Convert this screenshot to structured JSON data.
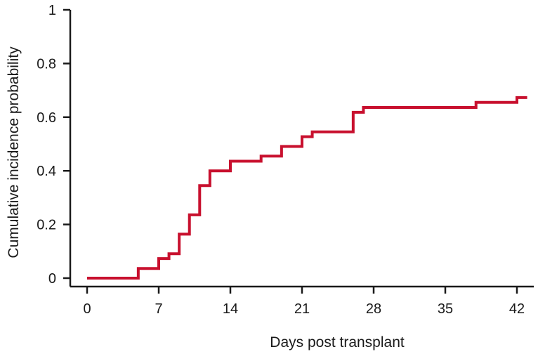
{
  "chart_data": {
    "type": "line",
    "step": true,
    "xlabel": "Days post transplant",
    "ylabel": "Cumulative incidence probability",
    "xlim": [
      0,
      43.5
    ],
    "ylim": [
      0,
      1
    ],
    "x_ticks": [
      0,
      7,
      14,
      21,
      28,
      35,
      42
    ],
    "x_tick_labels": [
      "0",
      "7",
      "14",
      "21",
      "28",
      "35",
      "42"
    ],
    "y_ticks": [
      0,
      0.2,
      0.4,
      0.6,
      0.8,
      1
    ],
    "y_tick_labels": [
      "0",
      "0.2",
      "0.4",
      "0.6",
      "0.8",
      "1"
    ],
    "grid": false,
    "line_color": "#c8102e",
    "series": [
      {
        "x": [
          0,
          5,
          7,
          8,
          9,
          10,
          11,
          12,
          14,
          17,
          19,
          21,
          22,
          26,
          27,
          38,
          42,
          43
        ],
        "y": [
          0,
          0.036,
          0.073,
          0.091,
          0.164,
          0.236,
          0.345,
          0.4,
          0.436,
          0.455,
          0.491,
          0.527,
          0.545,
          0.618,
          0.636,
          0.655,
          0.673,
          0.673
        ]
      }
    ]
  }
}
